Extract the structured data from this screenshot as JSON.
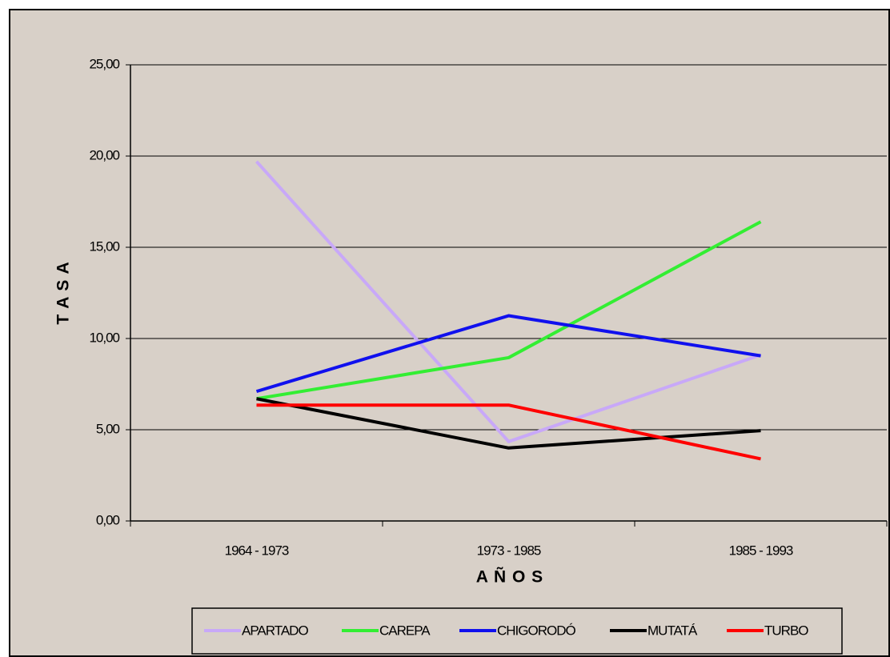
{
  "chart_data": {
    "type": "line",
    "y_label": "T A S A",
    "x_label": "A Ñ O S",
    "categories": [
      "1964 - 1973",
      "1973 - 1985",
      "1985 - 1993"
    ],
    "series": [
      {
        "name": "APARTADO",
        "color": "#c8a8f8",
        "values": [
          19.7,
          4.35,
          9.1
        ]
      },
      {
        "name": "CAREPA",
        "color": "#33ee33",
        "values": [
          6.7,
          8.95,
          16.4
        ]
      },
      {
        "name": "CHIGORODÓ",
        "color": "#1010ee",
        "values": [
          7.1,
          11.25,
          9.05
        ]
      },
      {
        "name": "MUTATÁ",
        "color": "#000000",
        "values": [
          6.7,
          4.0,
          4.95
        ]
      },
      {
        "name": "TURBO",
        "color": "#ff0000",
        "values": [
          6.35,
          6.35,
          3.4
        ]
      }
    ],
    "ylim": [
      0,
      25
    ],
    "yticks": [
      {
        "value": 0,
        "label": "0,00"
      },
      {
        "value": 5,
        "label": "5,00"
      },
      {
        "value": 10,
        "label": "10,00"
      },
      {
        "value": 15,
        "label": "15,00"
      },
      {
        "value": 20,
        "label": "20,00"
      },
      {
        "value": 25,
        "label": "25,00"
      }
    ],
    "grid": true,
    "legend": "bottom"
  }
}
